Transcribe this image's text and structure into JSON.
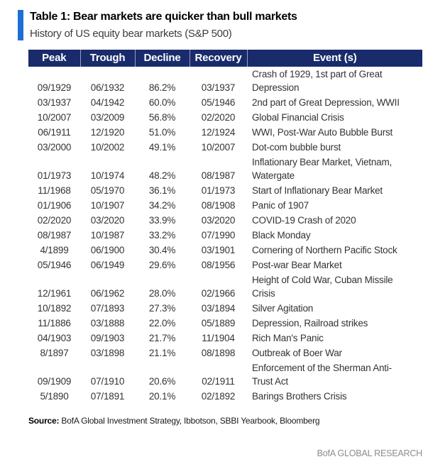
{
  "header": {
    "table_label": "Table 1: Bear markets are quicker than bull markets",
    "subtitle": "History of US equity bear markets (S&P 500)"
  },
  "table": {
    "columns": [
      "Peak",
      "Trough",
      "Decline",
      "Recovery",
      "Event (s)"
    ],
    "rows": [
      {
        "peak": "09/1929",
        "trough": "06/1932",
        "decline": "86.2%",
        "recovery": "03/1937",
        "event": "Crash of 1929, 1st part of Great\nDepression"
      },
      {
        "peak": "03/1937",
        "trough": "04/1942",
        "decline": "60.0%",
        "recovery": "05/1946",
        "event": "2nd part of Great Depression, WWII"
      },
      {
        "peak": "10/2007",
        "trough": "03/2009",
        "decline": "56.8%",
        "recovery": "02/2020",
        "event": "Global Financial Crisis"
      },
      {
        "peak": "06/1911",
        "trough": "12/1920",
        "decline": "51.0%",
        "recovery": "12/1924",
        "event": "WWI, Post-War Auto Bubble Burst"
      },
      {
        "peak": "03/2000",
        "trough": "10/2002",
        "decline": "49.1%",
        "recovery": "10/2007",
        "event": "Dot-com bubble burst"
      },
      {
        "peak": "01/1973",
        "trough": "10/1974",
        "decline": "48.2%",
        "recovery": "08/1987",
        "event": "Inflationary Bear Market, Vietnam,\nWatergate"
      },
      {
        "peak": "11/1968",
        "trough": "05/1970",
        "decline": "36.1%",
        "recovery": "01/1973",
        "event": "Start of Inflationary Bear Market"
      },
      {
        "peak": "01/1906",
        "trough": "10/1907",
        "decline": "34.2%",
        "recovery": "08/1908",
        "event": "Panic of 1907"
      },
      {
        "peak": "02/2020",
        "trough": "03/2020",
        "decline": "33.9%",
        "recovery": "03/2020",
        "event": "COVID-19 Crash of 2020"
      },
      {
        "peak": "08/1987",
        "trough": "10/1987",
        "decline": "33.2%",
        "recovery": "07/1990",
        "event": "Black Monday"
      },
      {
        "peak": "4/1899",
        "trough": "06/1900",
        "decline": "30.4%",
        "recovery": "03/1901",
        "event": "Cornering of Northern Pacific Stock"
      },
      {
        "peak": "05/1946",
        "trough": "06/1949",
        "decline": "29.6%",
        "recovery": "08/1956",
        "event": "Post-war Bear Market"
      },
      {
        "peak": "12/1961",
        "trough": "06/1962",
        "decline": "28.0%",
        "recovery": "02/1966",
        "event": "Height of Cold War, Cuban Missile\nCrisis"
      },
      {
        "peak": "10/1892",
        "trough": "07/1893",
        "decline": "27.3%",
        "recovery": "03/1894",
        "event": "Silver Agitation"
      },
      {
        "peak": "11/1886",
        "trough": "03/1888",
        "decline": "22.0%",
        "recovery": "05/1889",
        "event": "Depression, Railroad strikes"
      },
      {
        "peak": "04/1903",
        "trough": "09/1903",
        "decline": "21.7%",
        "recovery": "11/1904",
        "event": "Rich Man's Panic"
      },
      {
        "peak": "8/1897",
        "trough": "03/1898",
        "decline": "21.1%",
        "recovery": "08/1898",
        "event": "Outbreak of Boer War"
      },
      {
        "peak": "09/1909",
        "trough": "07/1910",
        "decline": "20.6%",
        "recovery": "02/1911",
        "event": "Enforcement of the Sherman Anti-\nTrust Act"
      },
      {
        "peak": "5/1890",
        "trough": "07/1891",
        "decline": "20.1%",
        "recovery": "02/1892",
        "event": "Barings Brothers Crisis"
      }
    ]
  },
  "footer": {
    "source_label": "Source:",
    "source_text": "BofA Global Investment Strategy, Ibbotson, SBBI Yearbook, Bloomberg",
    "brand": "BofA GLOBAL RESEARCH"
  },
  "colors": {
    "header_navy": "#1A2B6B",
    "accent_blue": "#1E6FD4",
    "body_text": "#333333",
    "brand_gray": "#8C8C8C"
  }
}
